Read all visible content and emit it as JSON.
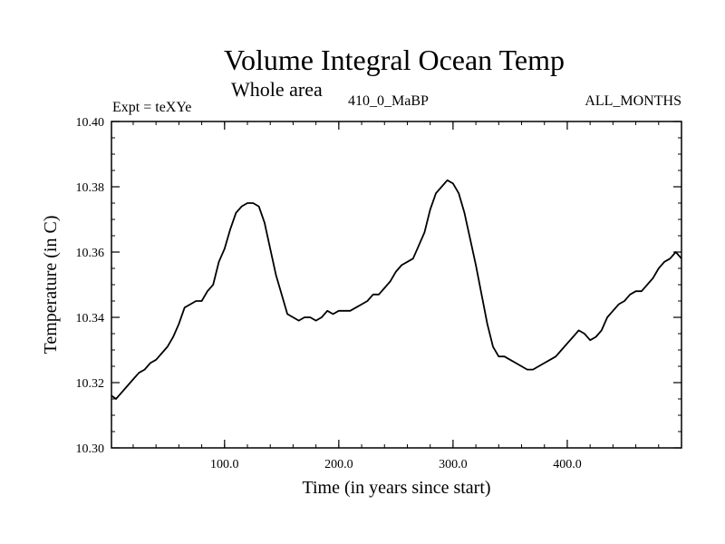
{
  "header": {
    "title": "Volume Integral Ocean Temp",
    "subtitle": "Whole area",
    "expt": "Expt = teXYe",
    "run": "410_0_MaBP",
    "months": "ALL_MONTHS"
  },
  "chart_data": {
    "type": "line",
    "xlabel": "Time (in years since start)",
    "ylabel": "Temperature (in C)",
    "xlim": [
      1,
      500
    ],
    "ylim": [
      10.3,
      10.4
    ],
    "x_ticks": [
      100,
      200,
      300,
      400
    ],
    "x_tick_labels": [
      "100.0",
      "200.0",
      "300.0",
      "400.0"
    ],
    "y_ticks": [
      10.3,
      10.32,
      10.34,
      10.36,
      10.38,
      10.4
    ],
    "y_tick_labels": [
      "10.30",
      "10.32",
      "10.34",
      "10.36",
      "10.38",
      "10.40"
    ],
    "grid": false,
    "series": [
      {
        "color": "#000000",
        "x": [
          1,
          5,
          10,
          15,
          20,
          25,
          30,
          35,
          40,
          45,
          50,
          55,
          60,
          65,
          70,
          75,
          80,
          85,
          90,
          95,
          100,
          105,
          110,
          115,
          120,
          125,
          130,
          135,
          140,
          145,
          150,
          155,
          160,
          165,
          170,
          175,
          180,
          185,
          190,
          195,
          200,
          205,
          210,
          215,
          220,
          225,
          230,
          235,
          240,
          245,
          250,
          255,
          260,
          265,
          270,
          275,
          280,
          285,
          290,
          295,
          300,
          305,
          310,
          315,
          320,
          325,
          330,
          335,
          340,
          345,
          350,
          355,
          360,
          365,
          370,
          375,
          380,
          385,
          390,
          395,
          400,
          405,
          410,
          415,
          420,
          425,
          430,
          435,
          440,
          445,
          450,
          455,
          460,
          465,
          470,
          475,
          480,
          485,
          490,
          495,
          500
        ],
        "y": [
          10.316,
          10.315,
          10.317,
          10.319,
          10.321,
          10.323,
          10.324,
          10.326,
          10.327,
          10.329,
          10.331,
          10.334,
          10.338,
          10.343,
          10.344,
          10.345,
          10.345,
          10.348,
          10.35,
          10.357,
          10.361,
          10.367,
          10.372,
          10.374,
          10.375,
          10.375,
          10.374,
          10.369,
          10.361,
          10.353,
          10.347,
          10.341,
          10.34,
          10.339,
          10.34,
          10.34,
          10.339,
          10.34,
          10.342,
          10.341,
          10.342,
          10.342,
          10.342,
          10.343,
          10.344,
          10.345,
          10.347,
          10.347,
          10.349,
          10.351,
          10.354,
          10.356,
          10.357,
          10.358,
          10.362,
          10.366,
          10.373,
          10.378,
          10.38,
          10.382,
          10.381,
          10.378,
          10.372,
          10.364,
          10.356,
          10.347,
          10.338,
          10.331,
          10.328,
          10.328,
          10.327,
          10.326,
          10.325,
          10.324,
          10.324,
          10.325,
          10.326,
          10.327,
          10.328,
          10.33,
          10.332,
          10.334,
          10.336,
          10.335,
          10.333,
          10.334,
          10.336,
          10.34,
          10.342,
          10.344,
          10.345,
          10.347,
          10.348,
          10.348,
          10.35,
          10.352,
          10.355,
          10.357,
          10.358,
          10.36,
          10.358
        ]
      }
    ]
  }
}
